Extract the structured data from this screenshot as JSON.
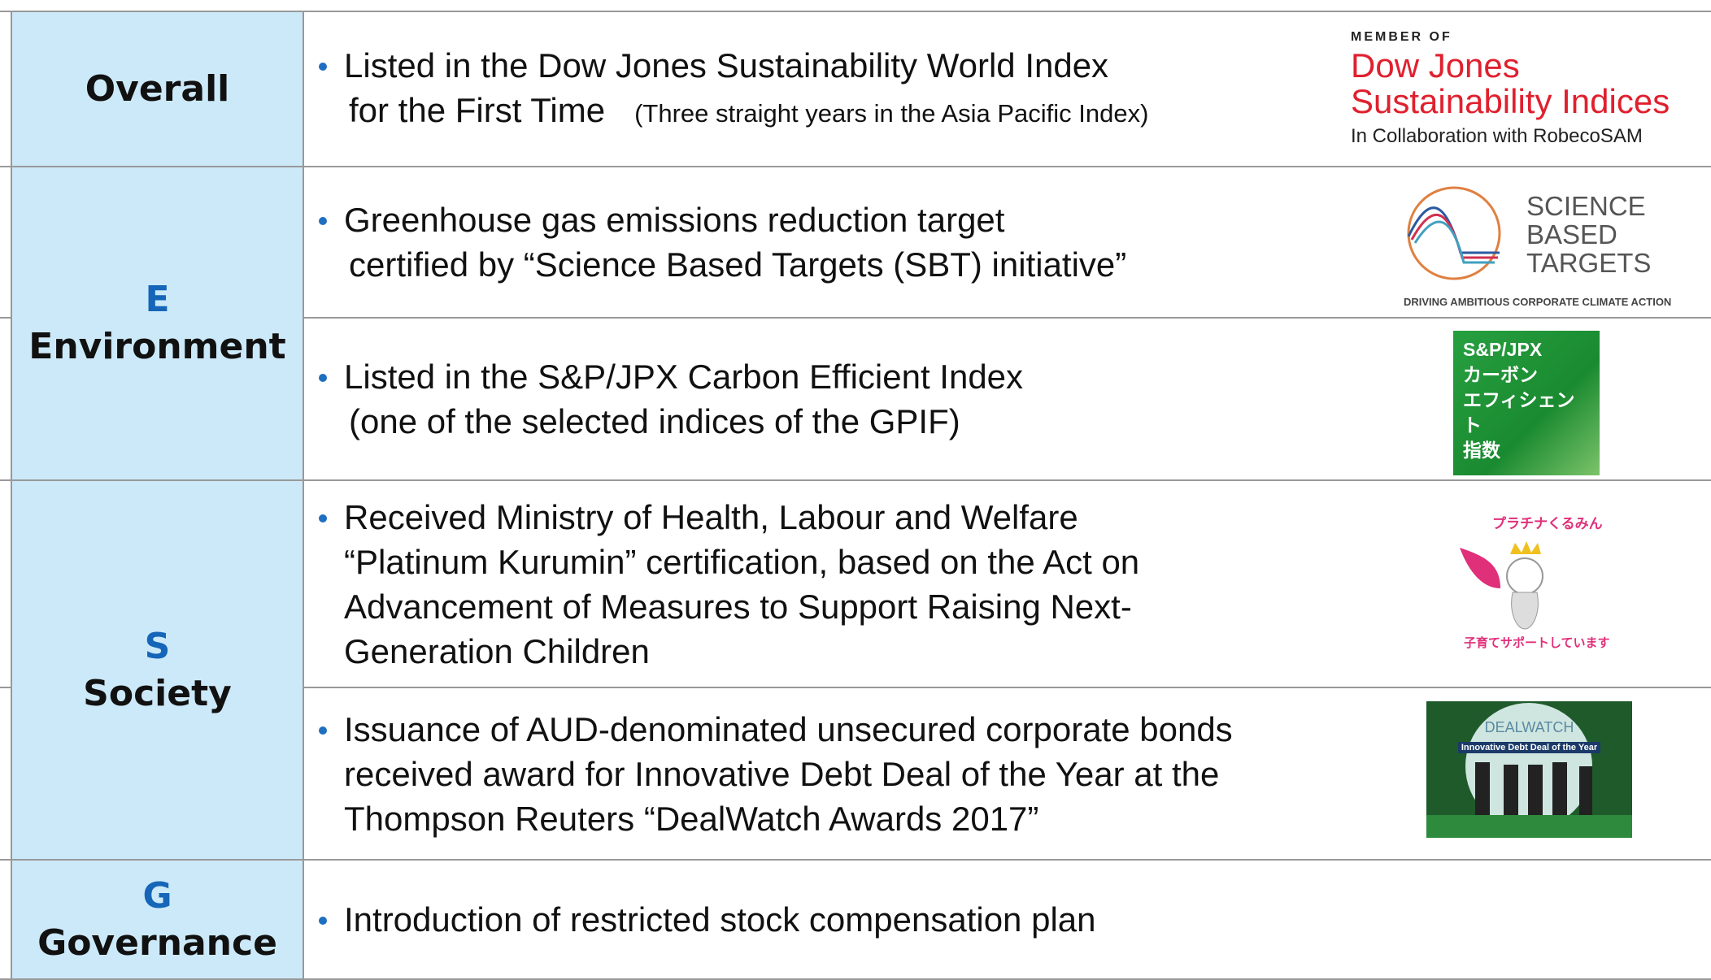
{
  "table": {
    "groups": [
      {
        "label": "Overall",
        "items": [
          {
            "lines": [
              "Listed in the Dow Jones Sustainability World Index",
              "for the First Time"
            ],
            "note": "(Three straight years in the Asia Pacific Index)"
          }
        ]
      },
      {
        "letter": "E",
        "label": "Environment",
        "items": [
          {
            "lines": [
              "Greenhouse gas emissions reduction target",
              "certified by “Science Based Targets (SBT) initiative”"
            ]
          },
          {
            "lines": [
              "Listed in the S&P/JPX Carbon Efficient Index",
              "(one of the selected indices of the GPIF)"
            ]
          }
        ]
      },
      {
        "letter": "S",
        "label": "Society",
        "items": [
          {
            "lines": [
              "Received Ministry of Health, Labour and Welfare",
              "“Platinum Kurumin” certification, based on the Act on",
              "Advancement of Measures to Support Raising Next-",
              "Generation Children"
            ]
          },
          {
            "lines": [
              "Issuance of AUD-denominated unsecured corporate bonds",
              "received award for Innovative Debt Deal of the Year at the",
              "Thompson Reuters “DealWatch Awards 2017”"
            ]
          }
        ]
      },
      {
        "letter": "G",
        "label": "Governance",
        "items": [
          {
            "lines": [
              "Introduction of restricted stock compensation plan"
            ]
          }
        ]
      }
    ]
  },
  "logos": {
    "djsi": {
      "top": "MEMBER OF",
      "name1": "Dow Jones",
      "name2": "Sustainability Indices",
      "collab": "In Collaboration with RobecoSAM"
    },
    "sbt": {
      "lines": [
        "SCIENCE",
        "BASED",
        "TARGETS"
      ],
      "tagline": "DRIVING AMBITIOUS CORPORATE CLIMATE ACTION"
    },
    "spjpx": {
      "lines": [
        "S&P/JPX",
        "カーボン",
        "エフィシェント",
        "指数"
      ]
    },
    "kurumin": {
      "top": "プラチナくるみん",
      "bottom": "子育てサポートしています"
    },
    "dealwatch": {
      "title": "DEALWATCH",
      "award": "Innovative Debt Deal of the Year"
    }
  }
}
